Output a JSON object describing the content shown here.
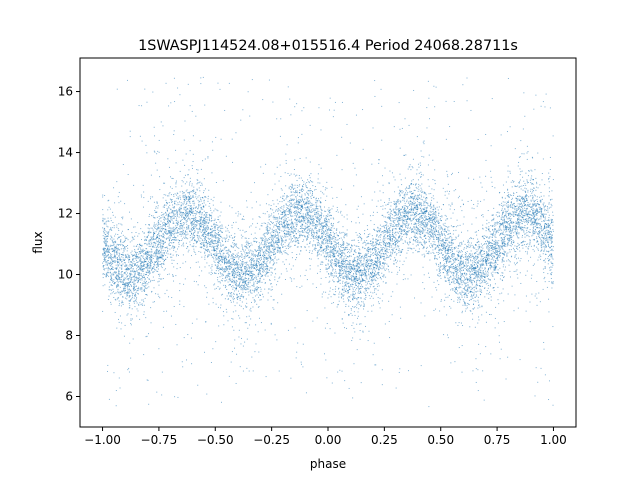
{
  "chart_data": {
    "type": "scatter",
    "title": "1SWASPJ114524.08+015516.4 Period 24068.28711s",
    "xlabel": "phase",
    "ylabel": "flux",
    "xlim": [
      -1.1,
      1.1
    ],
    "ylim": [
      5.0,
      17.1
    ],
    "x_ticks": [
      -1.0,
      -0.75,
      -0.5,
      -0.25,
      0.0,
      0.25,
      0.5,
      0.75,
      1.0
    ],
    "x_tick_labels": [
      "−1.00",
      "−0.75",
      "−0.50",
      "−0.25",
      "0.00",
      "0.25",
      "0.50",
      "0.75",
      "1.00"
    ],
    "y_ticks": [
      6,
      8,
      10,
      12,
      14,
      16
    ],
    "y_tick_labels": [
      "6",
      "8",
      "10",
      "12",
      "14",
      "16"
    ],
    "grid": false,
    "legend": "none",
    "marker_color": "#1f77b4",
    "series": [
      {
        "phase_range": [
          -1.0,
          1.0
        ],
        "description_model": "sinusoidal folded light curve with two cycles per unit phase",
        "mean_flux": 11.0,
        "amplitude": 1.0,
        "peaks_at_phase": [
          -0.625,
          -0.125,
          0.375,
          0.875
        ],
        "troughs_at_phase": [
          -0.875,
          -0.375,
          0.125,
          0.625
        ],
        "scatter_band_halfwidth": 1.0,
        "outlier_flux_range": [
          5.6,
          16.5
        ]
      }
    ],
    "profile": {
      "phase": [
        -1.0,
        -0.875,
        -0.75,
        -0.625,
        -0.5,
        -0.375,
        -0.25,
        -0.125,
        0.0,
        0.125,
        0.25,
        0.375,
        0.5,
        0.625,
        0.75,
        0.875,
        1.0
      ],
      "flux": [
        11.0,
        10.0,
        11.0,
        12.0,
        11.0,
        10.0,
        11.0,
        12.0,
        11.0,
        10.0,
        11.0,
        12.0,
        11.0,
        10.0,
        11.0,
        12.0,
        11.0
      ]
    }
  }
}
